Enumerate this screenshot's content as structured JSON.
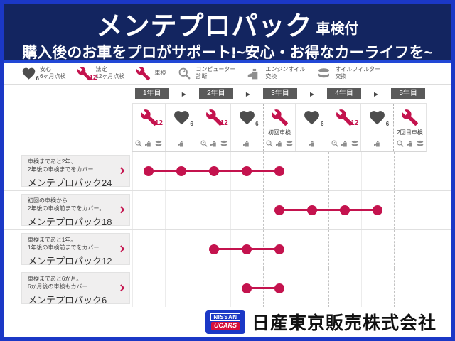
{
  "header": {
    "title": "メンテプロパック",
    "title_suffix": "車検付",
    "subtitle": "購入後のお車をプロがサポート!~安心・お得なカーライフを~"
  },
  "legend": [
    {
      "icon": "heart",
      "badge": "6",
      "badge_color": "gray",
      "color": "dark",
      "lines": [
        "安心",
        "6ヶ月点検"
      ]
    },
    {
      "icon": "wrench",
      "badge": "12",
      "badge_color": "red",
      "color": "red",
      "lines": [
        "法定",
        "12ヶ月点検"
      ]
    },
    {
      "icon": "wrench",
      "badge": "",
      "badge_color": "",
      "color": "red",
      "lines": [
        "車検"
      ]
    },
    {
      "icon": "magnifier",
      "badge": "",
      "badge_color": "",
      "color": "gray",
      "lines": [
        "コンピューター",
        "診断"
      ]
    },
    {
      "icon": "oilcan",
      "badge": "",
      "badge_color": "",
      "color": "gray",
      "lines": [
        "エンジンオイル",
        "交換"
      ]
    },
    {
      "icon": "filter",
      "badge": "",
      "badge_color": "",
      "color": "gray",
      "lines": [
        "オイルフィルター",
        "交換"
      ]
    }
  ],
  "years": [
    "1年目",
    "2年目",
    "3年目",
    "4年目",
    "5年目"
  ],
  "columns": [
    {
      "icon": "wrench",
      "badge": "12",
      "label": "",
      "smalls": [
        "magnifier",
        "oilcan",
        "filter"
      ]
    },
    {
      "icon": "heart",
      "badge": "6",
      "label": "",
      "smalls": [
        "oilcan"
      ]
    },
    {
      "icon": "wrench",
      "badge": "12",
      "label": "",
      "smalls": [
        "magnifier",
        "oilcan",
        "filter"
      ]
    },
    {
      "icon": "heart",
      "badge": "6",
      "label": "",
      "smalls": [
        "oilcan"
      ]
    },
    {
      "icon": "wrench",
      "badge": "",
      "label": "初回車検",
      "smalls": [
        "magnifier",
        "oilcan",
        "filter"
      ]
    },
    {
      "icon": "heart",
      "badge": "6",
      "label": "",
      "smalls": [
        "oilcan"
      ]
    },
    {
      "icon": "wrench",
      "badge": "12",
      "label": "",
      "smalls": [
        "magnifier",
        "oilcan",
        "filter"
      ]
    },
    {
      "icon": "heart",
      "badge": "6",
      "label": "",
      "smalls": [
        "oilcan"
      ]
    },
    {
      "icon": "wrench",
      "badge": "",
      "label": "2回目車検",
      "smalls": [
        "magnifier",
        "oilcan",
        "filter"
      ]
    }
  ],
  "plans": [
    {
      "desc1": "車検まであと2年、",
      "desc2": "2年後の車検までをカバー",
      "name": "メンテプロパック24",
      "start": 1,
      "end": 5
    },
    {
      "desc1": "初回の車検から",
      "desc2": "2年後の車検前までをカバー。",
      "name": "メンテプロパック18",
      "start": 5,
      "end": 8
    },
    {
      "desc1": "車検まであと1年。",
      "desc2": "1年後の車検前までをカバー",
      "name": "メンテプロパック12",
      "start": 3,
      "end": 5
    },
    {
      "desc1": "車検まであと6か月。",
      "desc2": "6か月後の車検もカバー",
      "name": "メンテプロパック6",
      "start": 4,
      "end": 5
    }
  ],
  "footer": {
    "logo_top": "NISSAN",
    "logo_bottom": "UCARS",
    "company": "日産東京販売株式会社"
  },
  "colors": {
    "accent_red": "#c4134e",
    "header_navy": "#132560",
    "frame_blue": "#1b38c6",
    "year_box_gray": "#5a5a5a",
    "icon_dark": "#4d4d4d",
    "icon_gray": "#8e8e8e"
  }
}
